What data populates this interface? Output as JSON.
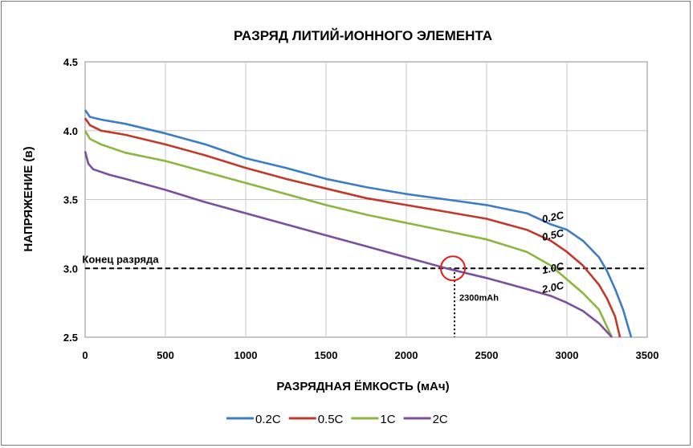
{
  "chart_data": {
    "type": "line",
    "title": "РАЗРЯД ЛИТИЙ-ИОННОГО ЭЛЕМЕНТА",
    "xlabel": "РАЗРЯДНАЯ ЁМКОСТЬ (мАч)",
    "ylabel": "НАПРЯЖЕНИЕ (в)",
    "xlim": [
      0,
      3500
    ],
    "ylim": [
      2.5,
      4.5
    ],
    "xticks": [
      "0",
      "500",
      "1000",
      "1500",
      "2000",
      "2500",
      "3000",
      "3500"
    ],
    "yticks": [
      "2.5",
      "3.0",
      "3.5",
      "4.0",
      "4.5"
    ],
    "grid": true,
    "legend_position": "bottom",
    "series": [
      {
        "name": "0.2C",
        "curve_label": "0.2C",
        "color": "#3c7dc4",
        "points": [
          [
            0,
            4.15
          ],
          [
            30,
            4.1
          ],
          [
            100,
            4.08
          ],
          [
            250,
            4.05
          ],
          [
            500,
            3.98
          ],
          [
            750,
            3.9
          ],
          [
            1000,
            3.8
          ],
          [
            1250,
            3.73
          ],
          [
            1500,
            3.65
          ],
          [
            1750,
            3.59
          ],
          [
            2000,
            3.54
          ],
          [
            2250,
            3.5
          ],
          [
            2500,
            3.46
          ],
          [
            2750,
            3.4
          ],
          [
            2900,
            3.32
          ],
          [
            3000,
            3.28
          ],
          [
            3100,
            3.2
          ],
          [
            3200,
            3.08
          ],
          [
            3250,
            2.98
          ],
          [
            3300,
            2.85
          ],
          [
            3350,
            2.7
          ],
          [
            3400,
            2.5
          ]
        ]
      },
      {
        "name": "0.5C",
        "curve_label": "0.5C",
        "color": "#c0392b",
        "points": [
          [
            0,
            4.09
          ],
          [
            30,
            4.04
          ],
          [
            100,
            4.0
          ],
          [
            250,
            3.97
          ],
          [
            500,
            3.9
          ],
          [
            750,
            3.82
          ],
          [
            1000,
            3.73
          ],
          [
            1250,
            3.65
          ],
          [
            1500,
            3.58
          ],
          [
            1750,
            3.51
          ],
          [
            2000,
            3.46
          ],
          [
            2250,
            3.41
          ],
          [
            2500,
            3.36
          ],
          [
            2750,
            3.28
          ],
          [
            2900,
            3.2
          ],
          [
            3000,
            3.12
          ],
          [
            3100,
            3.02
          ],
          [
            3200,
            2.88
          ],
          [
            3250,
            2.78
          ],
          [
            3300,
            2.65
          ],
          [
            3330,
            2.5
          ]
        ]
      },
      {
        "name": "1C",
        "curve_label": "1.0C",
        "color": "#8bb640",
        "points": [
          [
            0,
            4.0
          ],
          [
            30,
            3.94
          ],
          [
            100,
            3.9
          ],
          [
            250,
            3.84
          ],
          [
            500,
            3.78
          ],
          [
            750,
            3.7
          ],
          [
            1000,
            3.62
          ],
          [
            1250,
            3.54
          ],
          [
            1500,
            3.46
          ],
          [
            1750,
            3.39
          ],
          [
            2000,
            3.33
          ],
          [
            2250,
            3.27
          ],
          [
            2500,
            3.21
          ],
          [
            2750,
            3.12
          ],
          [
            2900,
            3.02
          ],
          [
            3000,
            2.92
          ],
          [
            3100,
            2.82
          ],
          [
            3200,
            2.7
          ],
          [
            3280,
            2.5
          ]
        ]
      },
      {
        "name": "2C",
        "curve_label": "2.0C",
        "color": "#7a4fa0",
        "points": [
          [
            0,
            3.85
          ],
          [
            20,
            3.76
          ],
          [
            50,
            3.72
          ],
          [
            150,
            3.68
          ],
          [
            250,
            3.65
          ],
          [
            500,
            3.57
          ],
          [
            750,
            3.48
          ],
          [
            1000,
            3.4
          ],
          [
            1250,
            3.32
          ],
          [
            1500,
            3.24
          ],
          [
            1750,
            3.16
          ],
          [
            2000,
            3.08
          ],
          [
            2250,
            3.0
          ],
          [
            2500,
            2.93
          ],
          [
            2750,
            2.85
          ],
          [
            2900,
            2.8
          ],
          [
            3000,
            2.75
          ],
          [
            3100,
            2.69
          ],
          [
            3200,
            2.6
          ],
          [
            3280,
            2.5
          ]
        ]
      }
    ],
    "annotations": {
      "end_of_discharge_label": "Конец  разряда",
      "end_of_discharge_voltage": 3.0,
      "marker_capacity": 2300,
      "marker_label": "2300mAh"
    },
    "legend": [
      {
        "label": "0.2C",
        "color": "#3c7dc4"
      },
      {
        "label": "0.5C",
        "color": "#c0392b"
      },
      {
        "label": "1C",
        "color": "#8bb640"
      },
      {
        "label": "2C",
        "color": "#7a4fa0"
      }
    ]
  }
}
